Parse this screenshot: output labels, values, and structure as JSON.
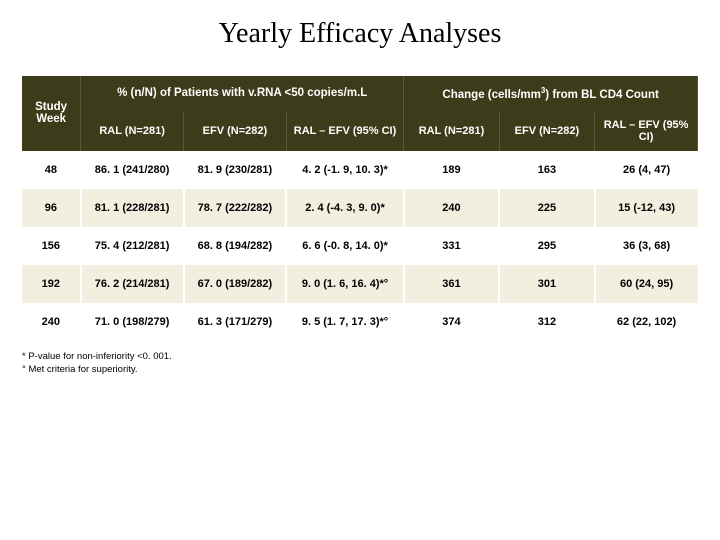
{
  "title": "Yearly Efficacy Analyses",
  "headers": {
    "study_week": "Study\nWeek",
    "group_a": "% (n/N) of Patients with v.RNA <50 copies/m.L",
    "group_b_pre": "Change (cells/mm",
    "group_b_sup": "3",
    "group_b_post": ") from BL CD4 Count",
    "a_ral": "RAL (N=281)",
    "a_efv": "EFV (N=282)",
    "a_diff": "RAL – EFV (95% CI)",
    "b_ral": "RAL (N=281)",
    "b_efv": "EFV (N=282)",
    "b_diff": "RAL – EFV (95% CI)"
  },
  "rows": [
    {
      "week": "48",
      "a_ral": "86. 1 (241/280)",
      "a_efv": "81. 9 (230/281)",
      "a_diff": "4. 2 (-1. 9, 10. 3)*",
      "b_ral": "189",
      "b_efv": "163",
      "b_diff": "26 (4, 47)"
    },
    {
      "week": "96",
      "a_ral": "81. 1 (228/281)",
      "a_efv": "78. 7 (222/282)",
      "a_diff": "2. 4 (-4. 3, 9. 0)*",
      "b_ral": "240",
      "b_efv": "225",
      "b_diff": "15 (-12, 43)"
    },
    {
      "week": "156",
      "a_ral": "75. 4 (212/281)",
      "a_efv": "68. 8 (194/282)",
      "a_diff": "6. 6 (-0. 8, 14. 0)*",
      "b_ral": "331",
      "b_efv": "295",
      "b_diff": "36 (3, 68)"
    },
    {
      "week": "192",
      "a_ral": "76. 2 (214/281)",
      "a_efv": "67. 0 (189/282)",
      "a_diff": "9. 0 (1. 6, 16. 4)*°",
      "b_ral": "361",
      "b_efv": "301",
      "b_diff": "60 (24, 95)"
    },
    {
      "week": "240",
      "a_ral": "71. 0 (198/279)",
      "a_efv": "61. 3 (171/279)",
      "a_diff": "9. 5 (1. 7, 17. 3)*°",
      "b_ral": "374",
      "b_efv": "312",
      "b_diff": "62 (22, 102)"
    }
  ],
  "footnotes": {
    "a": "* P-value for non-inferiority <0. 001.",
    "b": "° Met criteria for superiority."
  },
  "colors": {
    "header_bg": "#3c3c1a",
    "row_alt_bg": "#f2eee0",
    "row_bg": "#ffffff",
    "text": "#000000",
    "header_text": "#ffffff"
  }
}
